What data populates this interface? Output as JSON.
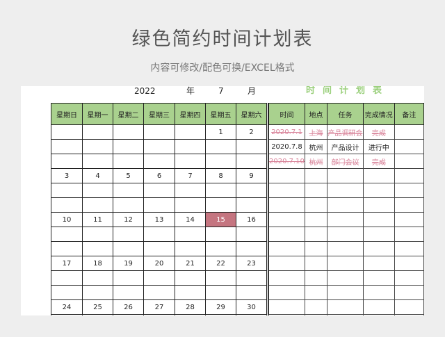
{
  "header": {
    "title": "绿色简约时间计划表",
    "subtitle": "内容可修改/配色可换/EXCEL格式"
  },
  "calendar": {
    "year": "2022",
    "year_unit": "年",
    "month": "7",
    "month_unit": "月",
    "weekdays": [
      "星期日",
      "星期一",
      "星期二",
      "星期三",
      "星期四",
      "星期五",
      "星期六"
    ],
    "weeks": [
      [
        "",
        "",
        "",
        "",
        "",
        "1",
        "2"
      ],
      [
        "3",
        "4",
        "5",
        "6",
        "7",
        "8",
        "9"
      ],
      [
        "10",
        "11",
        "12",
        "13",
        "14",
        "15",
        "16"
      ],
      [
        "17",
        "18",
        "19",
        "20",
        "21",
        "22",
        "23"
      ],
      [
        "24",
        "25",
        "26",
        "27",
        "28",
        "29",
        "30"
      ]
    ],
    "highlight_day": "15",
    "highlight_color": "#c57580",
    "header_color": "#a9d18e"
  },
  "plan": {
    "title": "时间计划表",
    "columns": [
      "时间",
      "地点",
      "任务",
      "完成情况",
      "备注"
    ],
    "rows": [
      {
        "time": "2020.7.1",
        "place": "上海",
        "task": "产品调研会",
        "status": "完成",
        "note": "",
        "done": true
      },
      {
        "time": "2020.7.8",
        "place": "杭州",
        "task": "产品设计",
        "status": "进行中",
        "note": "",
        "done": false
      },
      {
        "time": "2020.7.10",
        "place": "杭州",
        "task": "部门会议",
        "status": "完成",
        "note": "",
        "done": true
      }
    ],
    "done_color": "#d9849a",
    "title_color": "#9bd07d"
  }
}
